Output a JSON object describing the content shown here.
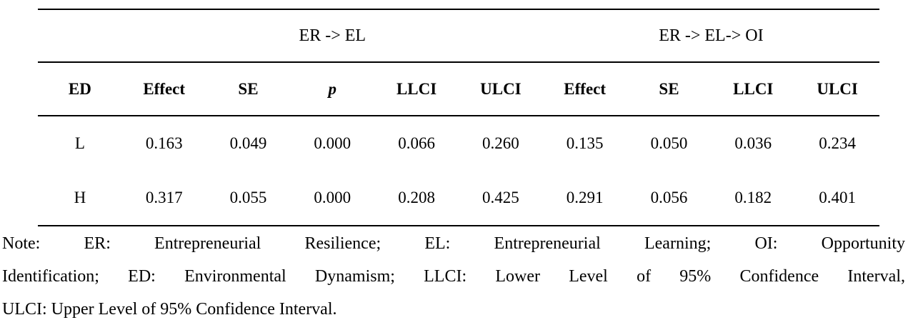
{
  "table": {
    "path_headers": [
      {
        "label": "ER -> EL"
      },
      {
        "label": "ER -> EL-> OI"
      }
    ],
    "col_headers": [
      "ED",
      "Effect",
      "SE",
      "p",
      "LLCI",
      "ULCI",
      "Effect",
      "SE",
      "LLCI",
      "ULCI"
    ],
    "rows": [
      [
        "L",
        "0.163",
        "0.049",
        "0.000",
        "0.066",
        "0.260",
        "0.135",
        "0.050",
        "0.036",
        "0.234"
      ],
      [
        "H",
        "0.317",
        "0.055",
        "0.000",
        "0.208",
        "0.425",
        "0.291",
        "0.056",
        "0.182",
        "0.401"
      ]
    ]
  },
  "note": {
    "lines": [
      "Note: ER: Entrepreneurial Resilience; EL: Entrepreneurial Learning; OI: Opportunity",
      "Identification; ED: Environmental Dynamism; LLCI: Lower Level of 95% Confidence Interval,",
      "ULCI: Upper Level of 95% Confidence Interval."
    ]
  },
  "colors": {
    "text": "#000000",
    "rule": "#000000",
    "background": "#ffffff"
  }
}
